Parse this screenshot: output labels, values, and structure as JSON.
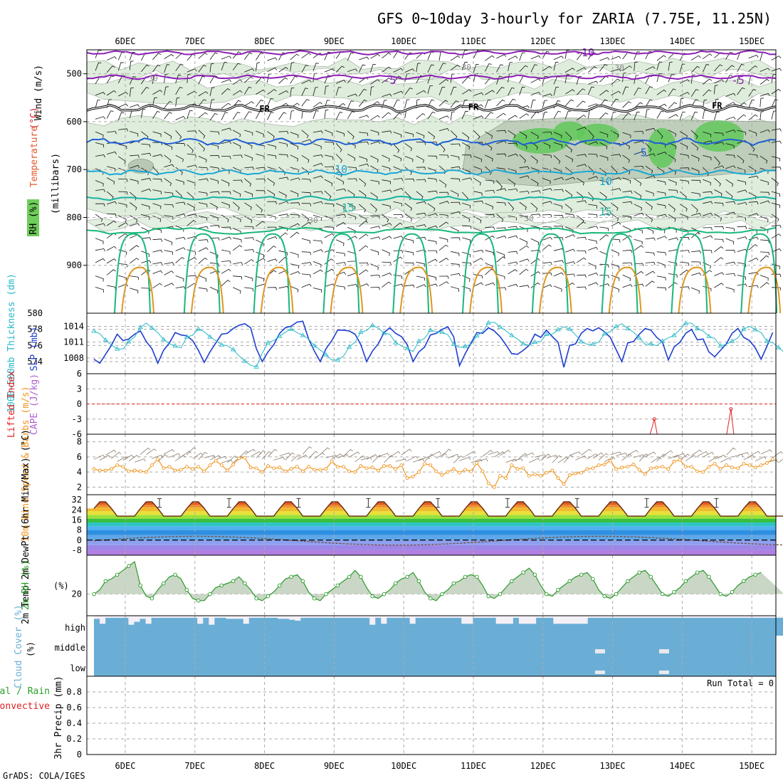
{
  "title": "GFS 0~10day 3-hourly for ZARIA (7.75E, 11.25N)",
  "footer": "GrADS: COLA/IGES",
  "dates": [
    "6DEC",
    "7DEC",
    "8DEC",
    "9DEC",
    "10DEC",
    "11DEC",
    "12DEC",
    "13DEC",
    "14DEC",
    "15DEC"
  ],
  "colors": {
    "isotherm_neg": "#8b1fb5",
    "isotherm_fr": "#000000",
    "isotherm_blue": "#1f5fd6",
    "isotherm_cyan": "#1aa7d6",
    "isotherm_teal": "#17b3a3",
    "isotherm_green": "#18b87a",
    "isotherm_orange": "#e0961e",
    "rh_light": "#dcebd8",
    "rh_mid": "#b8c8b4",
    "rh_green": "#62c85a",
    "thickness": "#1e3fcf",
    "slp": "#27b8c8",
    "wind_speed": "#f0961e",
    "rh2m": "#2a9a2a",
    "cloud": "#6aaed6",
    "precip_total": "#2ca02c",
    "precip_conv": "#e02020",
    "cape": "#b060d0",
    "lifted": "#e02020"
  },
  "chart_data": [
    {
      "panel": "upper_air",
      "type": "contour",
      "ylabel_parts": [
        "RH (%)",
        "Temperature",
        "(°C)",
        "Wind (m/s)",
        "(millibars)"
      ],
      "y_ticks": [
        500,
        600,
        700,
        800,
        900
      ],
      "ylim": [
        450,
        1000
      ],
      "contour_labels": [
        {
          "text": "-10",
          "day": 6.6,
          "p": 456
        },
        {
          "text": "-5",
          "day": 3.8,
          "p": 514
        },
        {
          "text": "-5",
          "day": 8.8,
          "p": 514
        },
        {
          "text": "FR",
          "day": 2.0,
          "p": 572
        },
        {
          "text": "FR",
          "day": 5.0,
          "p": 568
        },
        {
          "text": "FR",
          "day": 8.5,
          "p": 565
        },
        {
          "text": "-5",
          "day": 7.4,
          "p": 665
        },
        {
          "text": "10",
          "day": 3.1,
          "p": 700
        },
        {
          "text": "10",
          "day": 6.9,
          "p": 725
        },
        {
          "text": "15",
          "day": 3.2,
          "p": 780
        },
        {
          "text": "15",
          "day": 6.9,
          "p": 788
        },
        {
          "text": "30",
          "day": 0.4,
          "p": 508
        },
        {
          "text": "30",
          "day": 4.9,
          "p": 484
        },
        {
          "text": "30",
          "day": 7.1,
          "p": 486
        },
        {
          "text": "30",
          "day": 2.7,
          "p": 804
        },
        {
          "text": "30",
          "day": 5.8,
          "p": 800
        }
      ],
      "isotherms": [
        {
          "label": "-10",
          "color_key": "isotherm_neg",
          "base": 456,
          "amp": 3
        },
        {
          "label": "-5",
          "color_key": "isotherm_neg",
          "base": 507,
          "amp": 3
        },
        {
          "label": "FR",
          "color_key": "isotherm_fr",
          "base": 572,
          "amp": 5
        },
        {
          "label": "-5",
          "color_key": "isotherm_blue",
          "base": 642,
          "amp": 5
        },
        {
          "label": "10",
          "color_key": "isotherm_cyan",
          "base": 706,
          "amp": 4
        },
        {
          "label": "15",
          "color_key": "isotherm_teal",
          "base": 760,
          "amp": 3
        }
      ]
    },
    {
      "panel": "thickness_slp",
      "type": "line",
      "ylabel_left": "1000~500mb Thickness (dm)",
      "ylabel_right": "SLP (mb)",
      "thickness_ticks": [
        574,
        576,
        578,
        580
      ],
      "slp_ticks": [
        1008,
        1011,
        1014
      ],
      "thickness_ylim": [
        572.5,
        580
      ],
      "slp_ylim": [
        1005,
        1016.5
      ],
      "thickness": [
        574.3,
        573.8,
        574.9,
        576.0,
        577.4,
        576.6,
        576.8,
        577.4,
        577.8,
        576.5,
        575.6,
        573.8,
        575.4,
        576.3,
        577.6,
        577.3,
        577.2,
        576.6,
        575.4,
        573.9,
        575.2,
        576.3,
        577.4,
        577.5,
        578.1,
        578.5,
        578.7,
        578.2,
        575.6,
        574.0,
        575.2,
        576.1,
        577.5,
        578.2,
        578.4,
        578.9,
        579.0,
        576.8,
        575.3,
        574.0,
        575.6,
        576.6,
        577.9,
        577.9,
        577.8,
        577.4,
        576.1,
        574.0,
        575.3,
        576.2,
        577.6,
        578.2,
        577.5,
        577.1,
        576.1,
        574.0,
        575.2,
        575.8,
        577.3,
        577.5,
        578.0,
        578.3,
        577.1,
        573.5,
        575.0,
        576.3,
        577.6,
        577.5,
        578.2,
        577.8,
        577.1,
        576.1,
        575.0,
        574.9,
        575.4,
        576.0,
        577.4,
        577.0,
        577.9,
        577.1,
        576.4,
        573.3,
        576.0,
        576.2,
        577.5,
        578.1,
        577.8,
        578.2,
        577.7,
        577.0,
        575.5,
        574.0,
        576.3,
        576.5,
        577.4,
        578.1,
        577.9,
        577.0,
        576.4,
        574.2,
        575.8,
        576.4,
        577.5,
        578.0,
        576.7,
        576.8,
        575.2,
        574.6,
        575.4,
        576.2,
        577.5,
        578.1,
        577.0,
        576.6,
        575.7,
        574.3,
        575.9,
        577.6
      ],
      "slp": [
        1013.1,
        1012.6,
        1011.4,
        1010.5,
        1009.7,
        1009.7,
        1011.1,
        1012.0,
        1013.8,
        1014.6,
        1013.7,
        1012.8,
        1011.5,
        1010.7,
        1010.3,
        1009.9,
        1012.0,
        1012.3,
        1013.5,
        1013.0,
        1012.0,
        1011.3,
        1010.5,
        1010.3,
        1009.6,
        1008.4,
        1007.4,
        1006.6,
        1006.3,
        1008.9,
        1010.9,
        1011.3,
        1012.1,
        1012.9,
        1013.5,
        1012.8,
        1012.3,
        1011.6,
        1010.3,
        1009.5,
        1008.6,
        1007.6,
        1007.6,
        1008.3,
        1010.1,
        1011.0,
        1012.9,
        1013.2,
        1014.2,
        1013.7,
        1012.7,
        1012.5,
        1010.9,
        1010.3,
        1009.8,
        1009.2,
        1011.2,
        1011.7,
        1013.3,
        1013.0,
        1012.9,
        1012.4,
        1010.6,
        1010.0,
        1010.2,
        1010.6,
        1012.2,
        1013.0,
        1014.7,
        1014.8,
        1013.9,
        1013.2,
        1012.3,
        1011.6,
        1010.7,
        1010.4,
        1011.0,
        1011.1,
        1012.5,
        1012.5,
        1013.4,
        1013.9,
        1013.5,
        1012.4,
        1011.1,
        1010.6,
        1010.6,
        1011.0,
        1012.6,
        1013.0,
        1014.0,
        1014.5,
        1013.6,
        1012.9,
        1011.8,
        1010.6,
        1010.7,
        1010.3,
        1011.2,
        1011.8,
        1012.3,
        1013.4,
        1014.6,
        1014.6,
        1013.6,
        1013.1,
        1012.1,
        1011.7,
        1010.3,
        1010.6,
        1011.2,
        1011.8,
        1013.5,
        1014.0,
        1013.4,
        1012.8,
        1011.2,
        1010.9,
        1010.0,
        1009.0
      ]
    },
    {
      "panel": "stability",
      "type": "line",
      "ylabel_left": "Lifted Index",
      "ylabel_right": "CAPE (J/kg)",
      "y_ticks": [
        "6",
        "3",
        "0",
        "-3",
        "-6"
      ],
      "ylim": [
        -6,
        6
      ],
      "lifted_index_spikes": [
        {
          "day": 7.6,
          "value": -3.0
        },
        {
          "day": 8.7,
          "value": -1.0
        },
        {
          "day": 9.7,
          "value": 0.2
        }
      ]
    },
    {
      "panel": "wind10m",
      "type": "line",
      "ylabel": "10m Wind Speed & Barbs (m/s)",
      "y_ticks": [
        2,
        4,
        6,
        8
      ],
      "ylim": [
        1,
        9
      ],
      "values": [
        4.4,
        4.2,
        4.2,
        4.4,
        4.9,
        4.7,
        4.1,
        4.2,
        4.1,
        4.0,
        4.9,
        5.7,
        4.5,
        4.7,
        4.2,
        4.3,
        4.7,
        4.4,
        4.7,
        4.1,
        4.9,
        5.5,
        4.9,
        4.2,
        5.0,
        5.8,
        5.9,
        4.6,
        4.5,
        4.0,
        4.8,
        4.5,
        4.6,
        4.1,
        4.4,
        4.7,
        4.1,
        4.7,
        4.3,
        4.3,
        4.4,
        5.4,
        4.7,
        4.7,
        4.1,
        4.0,
        4.8,
        4.5,
        4.6,
        4.2,
        4.8,
        4.8,
        4.4,
        4.9,
        3.2,
        3.4,
        4.0,
        5.1,
        4.9,
        4.1,
        3.6,
        4.0,
        4.4,
        3.9,
        4.3,
        4.1,
        5.2,
        4.1,
        2.5,
        2.0,
        3.5,
        3.2,
        4.9,
        4.4,
        4.5,
        3.5,
        3.7,
        3.5,
        3.9,
        4.2,
        3.2,
        2.4,
        3.6,
        3.8,
        3.9,
        4.4,
        4.5,
        4.9,
        5.0,
        5.5,
        4.4,
        4.6,
        4.7,
        5.0,
        4.3,
        3.7,
        4.5,
        4.6,
        4.7,
        4.4,
        5.4,
        5.6,
        4.7,
        4.7,
        4.1,
        4.0,
        4.7,
        5.1,
        4.4,
        4.9,
        4.6,
        4.5,
        5.1,
        4.9,
        4.6,
        4.9,
        5.2,
        5.7
      ]
    },
    {
      "panel": "temp2m",
      "type": "area",
      "ylabel": "2m Temp 2m DewPt (6hr Min/Max) (°C)",
      "y_ticks": [
        "32",
        "24",
        "16",
        "8",
        "0",
        "-8"
      ],
      "ylim": [
        -12,
        36
      ],
      "temperature_daily_min": 19,
      "temperature_daily_max": 31,
      "dewpoint_range": [
        -4,
        3
      ]
    },
    {
      "panel": "rh2m",
      "type": "area",
      "ylabel": "2m RH (%)",
      "y_ticks": [
        20
      ],
      "ylim": [
        10,
        38
      ],
      "values": [
        20,
        22,
        26,
        27,
        29,
        31,
        33,
        35,
        24,
        19,
        18,
        22,
        25,
        28,
        29,
        27,
        22,
        18,
        17,
        17,
        20,
        23,
        24,
        25,
        26,
        28,
        25,
        22,
        18,
        17,
        19,
        21,
        24,
        27,
        28,
        29,
        26,
        21,
        18,
        17,
        20,
        22,
        24,
        26,
        28,
        31,
        28,
        23,
        19,
        18,
        20,
        22,
        25,
        27,
        28,
        30,
        26,
        21,
        18,
        17,
        20,
        22,
        25,
        26,
        28,
        29,
        28,
        24,
        19,
        18,
        20,
        23,
        26,
        28,
        30,
        32,
        29,
        24,
        20,
        19,
        22,
        24,
        26,
        28,
        29,
        30,
        27,
        22,
        19,
        18,
        20,
        23,
        26,
        28,
        30,
        31,
        28,
        24,
        20,
        19,
        21,
        23,
        26,
        28,
        30,
        31,
        28,
        24,
        20,
        19,
        21,
        24,
        26,
        28,
        29,
        30
      ]
    },
    {
      "panel": "cloud",
      "type": "bar",
      "ylabel": "Cloud Cover (%)",
      "levels": [
        "high",
        "middle",
        "low"
      ],
      "high_cover_percent": [
        85,
        60,
        90,
        90,
        90,
        90,
        55,
        70,
        85,
        60,
        90,
        90,
        90,
        90,
        90,
        90,
        90,
        90,
        60,
        90,
        55,
        90,
        90,
        85,
        85,
        85,
        60,
        90,
        90,
        90,
        90,
        90,
        85,
        85,
        80,
        75,
        90,
        90,
        90,
        90,
        90,
        90,
        90,
        90,
        90,
        90,
        90,
        90,
        55,
        90,
        60,
        90,
        90,
        90,
        90,
        60,
        90,
        90,
        90,
        90,
        90,
        90,
        90,
        90,
        60,
        60,
        90,
        90,
        90,
        90,
        60,
        60,
        60,
        90,
        60,
        60,
        60,
        90,
        90,
        90,
        60,
        60,
        60,
        60,
        60,
        60,
        90,
        90,
        90,
        90,
        90,
        90,
        90,
        90,
        90,
        90,
        90,
        90,
        90,
        90,
        90,
        90,
        90,
        90,
        90,
        90,
        90,
        90,
        90,
        90,
        90,
        90,
        90,
        90,
        90,
        90,
        90,
        90,
        90,
        90
      ],
      "mid_gaps": [
        {
          "day": 6.83,
          "level": "middle"
        },
        {
          "day": 7.75,
          "level": "middle"
        },
        {
          "day": 6.83,
          "level": "low"
        },
        {
          "day": 7.75,
          "level": "low"
        }
      ]
    },
    {
      "panel": "precip",
      "type": "bar",
      "ylabel_parts": [
        "Total / Rain",
        "Convective",
        "3hr Precip (mm)"
      ],
      "y_ticks": [
        "0",
        "0.2",
        "0.4",
        "0.6",
        "0.8"
      ],
      "ylim": [
        0,
        1
      ],
      "run_total_label": "Run Total = 0",
      "values": []
    }
  ]
}
